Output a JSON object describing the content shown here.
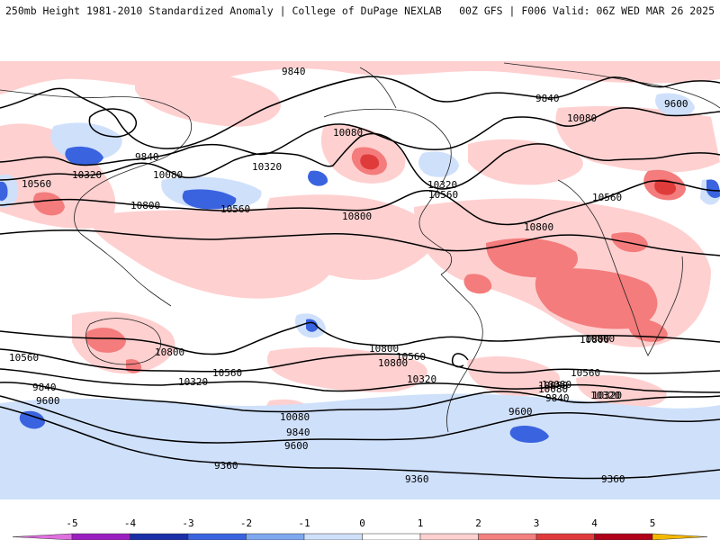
{
  "header": {
    "left": "250mb Height 1981-2010 Standardized Anomaly | College of DuPage NEXLAB",
    "right": "00Z GFS | F006 Valid: 06Z WED MAR 26 2025"
  },
  "colorbar": {
    "ticks": [
      "-5",
      "-4",
      "-3",
      "-2",
      "-1",
      "0",
      "1",
      "2",
      "3",
      "4",
      "5"
    ],
    "colors": [
      "#e070e0",
      "#9b1fc0",
      "#1a2fa8",
      "#3a63e0",
      "#7fa8ef",
      "#cfe0fb",
      "#ffffff",
      "#ffd0d0",
      "#f28080",
      "#e03b3b",
      "#b0001a",
      "#ff8c00",
      "#f5b800"
    ]
  },
  "contours": {
    "labels": [
      "9840",
      "9840",
      "10080",
      "9600",
      "10080",
      "9840",
      "10320",
      "10080",
      "10560",
      "10800",
      "10320",
      "10560",
      "10800",
      "10320",
      "10560",
      "10800",
      "10560",
      "10800",
      "10800",
      "10560",
      "10800",
      "10560",
      "10320",
      "10800",
      "10560",
      "10320",
      "10080",
      "9840",
      "9600",
      "10080",
      "9840",
      "9600",
      "9360",
      "9360",
      "9360",
      "10320",
      "10080",
      "9840",
      "9600",
      "10800",
      "10560",
      "10320",
      "10080"
    ]
  }
}
